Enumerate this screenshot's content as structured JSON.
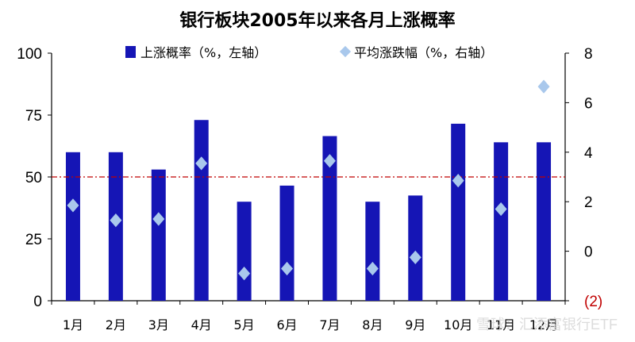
{
  "chart_data": {
    "type": "bar",
    "title": "银行板块2005年以来各月上涨概率",
    "categories": [
      "1月",
      "2月",
      "3月",
      "4月",
      "5月",
      "6月",
      "7月",
      "8月",
      "9月",
      "10月",
      "11月",
      "12月"
    ],
    "series": [
      {
        "name": "上涨概率（%，左轴）",
        "type": "bar",
        "axis": "left",
        "color": "#1515b5",
        "values": [
          60,
          60,
          53,
          73,
          40,
          46.5,
          66.5,
          40,
          42.5,
          71.5,
          64,
          64
        ]
      },
      {
        "name": "平均涨跌幅（%，右轴）",
        "type": "scatter",
        "axis": "right",
        "color": "#a9c8ec",
        "values": [
          1.85,
          1.25,
          1.3,
          3.55,
          -0.9,
          -0.7,
          3.65,
          -0.7,
          -0.25,
          2.85,
          1.7,
          6.65
        ]
      }
    ],
    "y_left": {
      "ylim": [
        0,
        100
      ],
      "ticks": [
        "0",
        "25",
        "50",
        "75",
        "100"
      ],
      "tick_values": [
        0,
        25,
        50,
        75,
        100
      ]
    },
    "y_right": {
      "ylim": [
        -2,
        8
      ],
      "ticks": [
        "(2)",
        "0",
        "2",
        "4",
        "6",
        "8"
      ],
      "tick_values": [
        -2,
        0,
        2,
        4,
        6,
        8
      ]
    },
    "reference_line": {
      "axis": "left",
      "value": 50,
      "style": "dash-dot",
      "color": "#c00000"
    },
    "legend_position": "top",
    "grid": false
  },
  "watermark": "雪球：汇添富银行ETF"
}
